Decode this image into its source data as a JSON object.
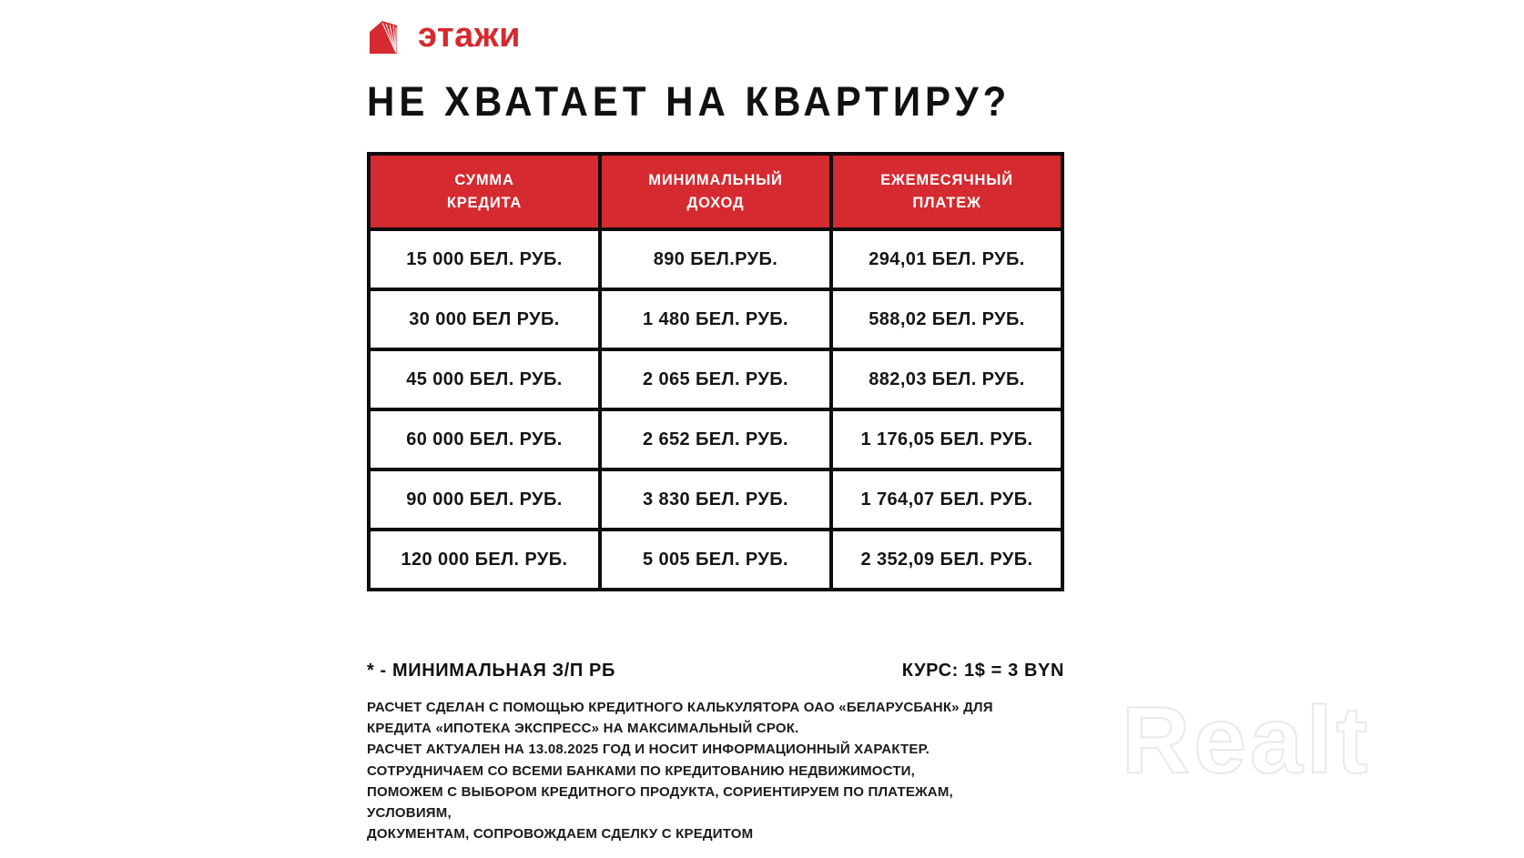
{
  "brand": {
    "name": "этажи"
  },
  "title": "НЕ ХВАТАЕТ НА КВАРТИРУ?",
  "table": {
    "columns": [
      {
        "line1": "СУММА",
        "line2": "КРЕДИТА"
      },
      {
        "line1": "МИНИМАЛЬНЫЙ",
        "line2": "ДОХОД"
      },
      {
        "line1": "ЕЖЕМЕСЯЧНЫЙ",
        "line2": "ПЛАТЕЖ"
      }
    ],
    "rows": [
      [
        "15 000 БЕЛ. РУБ.",
        "890 БЕЛ.РУБ.",
        "294,01 БЕЛ. РУБ."
      ],
      [
        "30 000 БЕЛ РУБ.",
        "1 480 БЕЛ. РУБ.",
        "588,02 БЕЛ. РУБ."
      ],
      [
        "45 000 БЕЛ. РУБ.",
        "2 065 БЕЛ. РУБ.",
        "882,03 БЕЛ. РУБ."
      ],
      [
        "60 000 БЕЛ. РУБ.",
        "2 652 БЕЛ. РУБ.",
        "1 176,05 БЕЛ. РУБ."
      ],
      [
        "90 000 БЕЛ. РУБ.",
        "3 830 БЕЛ. РУБ.",
        "1 764,07 БЕЛ. РУБ."
      ],
      [
        "120 000 БЕЛ. РУБ.",
        "5 005 БЕЛ. РУБ.",
        "2 352,09 БЕЛ. РУБ."
      ]
    ]
  },
  "footnotes": {
    "left": "* - МИНИМАЛЬНАЯ З/П РБ",
    "right": "КУРС: 1$ = 3 BYN"
  },
  "fine_print": [
    "РАСЧЕТ СДЕЛАН С ПОМОЩЬЮ КРЕДИТНОГО КАЛЬКУЛЯТОРА ОАО «БЕЛАРУСБАНК» ДЛЯ",
    "КРЕДИТА «ИПОТЕКА ЭКСПРЕСС» НА МАКСИМАЛЬНЫЙ СРОК.",
    "РАСЧЕТ АКТУАЛЕН НА 13.08.2025 ГОД И НОСИТ ИНФОРМАЦИОННЫЙ ХАРАКТЕР.",
    "СОТРУДНИЧАЕМ СО ВСЕМИ БАНКАМИ ПО КРЕДИТОВАНИЮ НЕДВИЖИМОСТИ,",
    "ПОМОЖЕМ С ВЫБОРОМ КРЕДИТНОГО ПРОДУКТА, СОРИЕНТИРУЕМ ПО ПЛАТЕЖАМ,",
    "УСЛОВИЯМ,",
    "ДОКУМЕНТАМ, СОПРОВОЖДАЕМ СДЕЛКУ С КРЕДИТОМ"
  ],
  "watermark": "Realt",
  "colors": {
    "accent_red": "#d42a30",
    "border_black": "#0d0d0d",
    "watermark_gray": "#e9e9e9"
  }
}
